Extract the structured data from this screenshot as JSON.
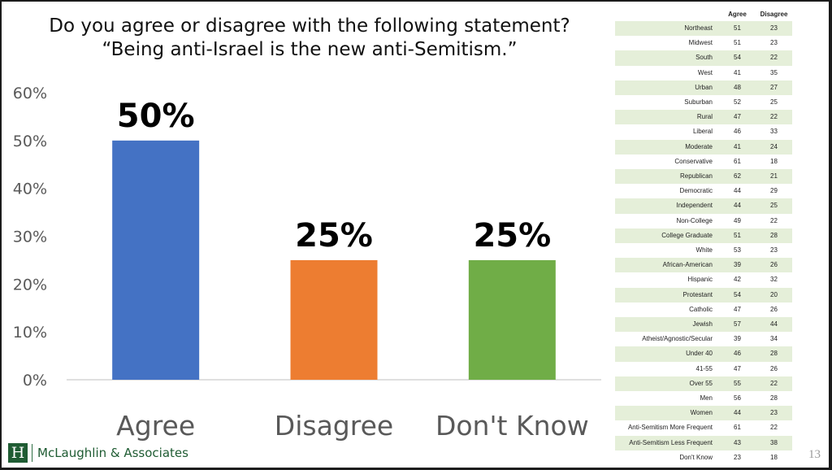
{
  "title": {
    "line1": "Do you agree or disagree with the following statement?",
    "line2": "“Being anti-Israel is the new anti-Semitism.”"
  },
  "chart_data": {
    "type": "bar",
    "categories": [
      "Agree",
      "Disagree",
      "Don't Know"
    ],
    "values": [
      50,
      25,
      25
    ],
    "value_labels": [
      "50%",
      "25%",
      "25%"
    ],
    "colors": [
      "#4472c4",
      "#ed7d31",
      "#70ad47"
    ],
    "ylim": [
      0,
      60
    ],
    "yticks": [
      0,
      10,
      20,
      30,
      40,
      50,
      60
    ],
    "ytick_labels": [
      "0%",
      "10%",
      "20%",
      "30%",
      "40%",
      "50%",
      "60%"
    ],
    "grid": false,
    "legend": false
  },
  "crosstab": {
    "headers": [
      "Agree",
      "Disagree"
    ],
    "rows": [
      {
        "label": "Northeast",
        "agree": "51",
        "disagree": "23"
      },
      {
        "label": "Midwest",
        "agree": "51",
        "disagree": "23"
      },
      {
        "label": "South",
        "agree": "54",
        "disagree": "22"
      },
      {
        "label": "West",
        "agree": "41",
        "disagree": "35"
      },
      {
        "label": "Urban",
        "agree": "48",
        "disagree": "27"
      },
      {
        "label": "Suburban",
        "agree": "52",
        "disagree": "25"
      },
      {
        "label": "Rural",
        "agree": "47",
        "disagree": "22"
      },
      {
        "label": "Liberal",
        "agree": "46",
        "disagree": "33"
      },
      {
        "label": "Moderate",
        "agree": "41",
        "disagree": "24"
      },
      {
        "label": "Conservative",
        "agree": "61",
        "disagree": "18"
      },
      {
        "label": "Republican",
        "agree": "62",
        "disagree": "21"
      },
      {
        "label": "Democratic",
        "agree": "44",
        "disagree": "29"
      },
      {
        "label": "Independent",
        "agree": "44",
        "disagree": "25"
      },
      {
        "label": "Non-College",
        "agree": "49",
        "disagree": "22"
      },
      {
        "label": "College Graduate",
        "agree": "51",
        "disagree": "28"
      },
      {
        "label": "White",
        "agree": "53",
        "disagree": "23"
      },
      {
        "label": "African-American",
        "agree": "39",
        "disagree": "26"
      },
      {
        "label": "Hispanic",
        "agree": "42",
        "disagree": "32"
      },
      {
        "label": "Protestant",
        "agree": "54",
        "disagree": "20"
      },
      {
        "label": "Catholic",
        "agree": "47",
        "disagree": "26"
      },
      {
        "label": "Jewish",
        "agree": "57",
        "disagree": "44"
      },
      {
        "label": "Atheist/Agnostic/Secular",
        "agree": "39",
        "disagree": "34"
      },
      {
        "label": "Under 40",
        "agree": "46",
        "disagree": "28"
      },
      {
        "label": "41-55",
        "agree": "47",
        "disagree": "26"
      },
      {
        "label": "Over 55",
        "agree": "55",
        "disagree": "22"
      },
      {
        "label": "Men",
        "agree": "56",
        "disagree": "28"
      },
      {
        "label": "Women",
        "agree": "44",
        "disagree": "23"
      },
      {
        "label": "Anti-Semitism More Frequent",
        "agree": "61",
        "disagree": "22"
      },
      {
        "label": "Anti-Semitism Less Frequent",
        "agree": "43",
        "disagree": "38"
      },
      {
        "label": "Don't Know",
        "agree": "23",
        "disagree": "18"
      }
    ]
  },
  "footer": {
    "logo_letter": "H",
    "company": "McLaughlin & Associates",
    "page_number": "13"
  }
}
